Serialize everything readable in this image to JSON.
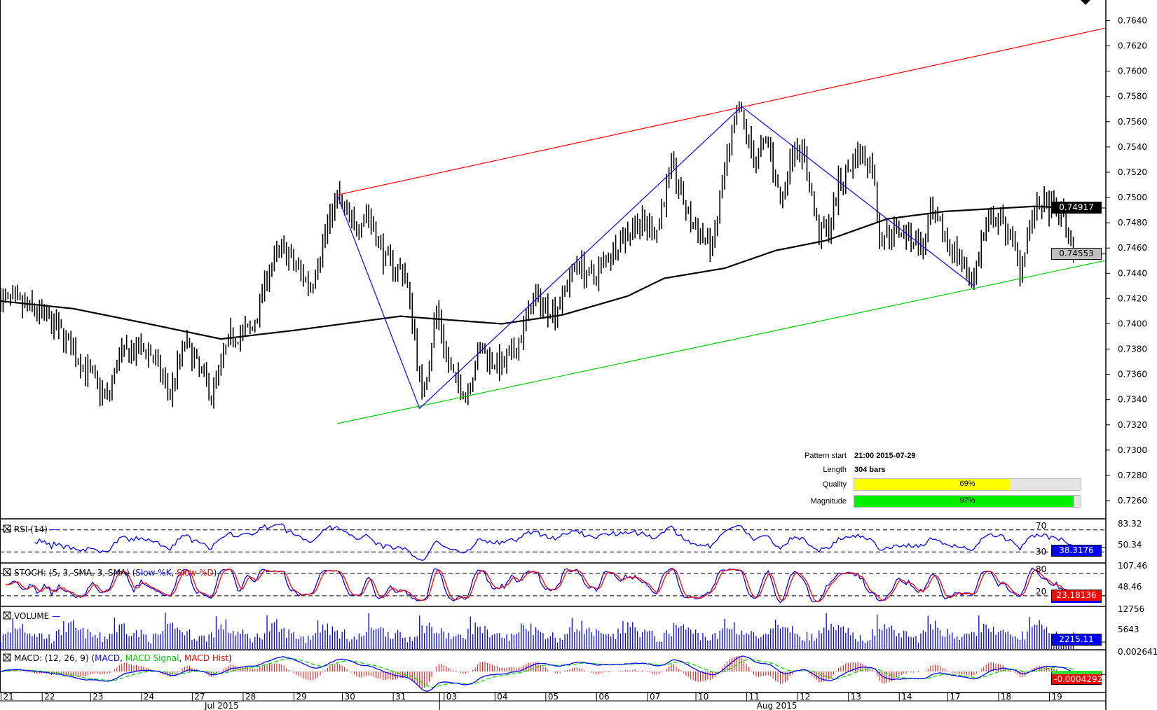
{
  "pattern_info": {
    "pattern_start_label": "Pattern start",
    "pattern_start_value": "21:00 2015-07-29",
    "length_label": "Length",
    "length_value": "304 bars",
    "quality_label": "Quality",
    "quality_value": "69%",
    "quality_fraction": 0.69,
    "magnitude_label": "Magnitude",
    "magnitude_value": "97%",
    "magnitude_fraction": 0.97
  },
  "colors": {
    "resistance": "#ff0000",
    "support": "#00cc00",
    "zigzag": "#0000ff",
    "quality": "#ffff00",
    "magnitude": "#00ee00",
    "sma": "#000000"
  },
  "chart_data": {
    "type": "ohlc",
    "title": "",
    "ylabel": "",
    "ylim": [
      0.725,
      0.765
    ],
    "y_ticks": [
      "0.7640",
      "0.7620",
      "0.7600",
      "0.7580",
      "0.7560",
      "0.7540",
      "0.7520",
      "0.7500",
      "0.7480",
      "0.7460",
      "0.7440",
      "0.7420",
      "0.7400",
      "0.7380",
      "0.7360",
      "0.7340",
      "0.7320",
      "0.7300",
      "0.7280",
      "0.7260"
    ],
    "bar_count": 444,
    "price_path": [
      [
        0,
        0.742
      ],
      [
        15,
        0.741
      ],
      [
        24,
        0.7395
      ],
      [
        44,
        0.734
      ],
      [
        49,
        0.7375
      ],
      [
        61,
        0.738
      ],
      [
        70,
        0.7345
      ],
      [
        76,
        0.7385
      ],
      [
        87,
        0.7345
      ],
      [
        95,
        0.739
      ],
      [
        104,
        0.7395
      ],
      [
        110,
        0.744
      ],
      [
        116,
        0.746
      ],
      [
        128,
        0.743
      ],
      [
        136,
        0.7485
      ],
      [
        139,
        0.75
      ],
      [
        146,
        0.7475
      ],
      [
        151,
        0.749
      ],
      [
        159,
        0.745
      ],
      [
        167,
        0.744
      ],
      [
        171,
        0.739
      ],
      [
        174,
        0.734
      ],
      [
        180,
        0.741
      ],
      [
        186,
        0.736
      ],
      [
        192,
        0.7345
      ],
      [
        198,
        0.738
      ],
      [
        207,
        0.7365
      ],
      [
        213,
        0.738
      ],
      [
        220,
        0.742
      ],
      [
        229,
        0.741
      ],
      [
        238,
        0.745
      ],
      [
        244,
        0.7435
      ],
      [
        253,
        0.746
      ],
      [
        262,
        0.748
      ],
      [
        271,
        0.7475
      ],
      [
        277,
        0.7525
      ],
      [
        285,
        0.748
      ],
      [
        294,
        0.746
      ],
      [
        299,
        0.752
      ],
      [
        305,
        0.757
      ],
      [
        311,
        0.753
      ],
      [
        317,
        0.7545
      ],
      [
        322,
        0.7495
      ],
      [
        328,
        0.7545
      ],
      [
        332,
        0.753
      ],
      [
        338,
        0.747
      ],
      [
        343,
        0.748
      ],
      [
        346,
        0.751
      ],
      [
        354,
        0.7535
      ],
      [
        360,
        0.7525
      ],
      [
        363,
        0.747
      ],
      [
        372,
        0.7475
      ],
      [
        381,
        0.746
      ],
      [
        384,
        0.7485
      ],
      [
        393,
        0.746
      ],
      [
        402,
        0.7435
      ],
      [
        405,
        0.7465
      ],
      [
        410,
        0.7485
      ],
      [
        416,
        0.7475
      ],
      [
        421,
        0.7445
      ],
      [
        425,
        0.748
      ],
      [
        430,
        0.7495
      ],
      [
        439,
        0.7485
      ],
      [
        443,
        0.7455
      ]
    ],
    "moving_average": [
      [
        0,
        0.7418
      ],
      [
        30,
        0.7412
      ],
      [
        61,
        0.74
      ],
      [
        91,
        0.7388
      ],
      [
        122,
        0.7395
      ],
      [
        165,
        0.7406
      ],
      [
        207,
        0.74
      ],
      [
        232,
        0.7407
      ],
      [
        259,
        0.7422
      ],
      [
        274,
        0.7436
      ],
      [
        299,
        0.7444
      ],
      [
        320,
        0.7458
      ],
      [
        341,
        0.7466
      ],
      [
        366,
        0.7483
      ],
      [
        390,
        0.7489
      ],
      [
        427,
        0.7493
      ],
      [
        443,
        0.74917
      ]
    ],
    "resistance_line": [
      [
        139,
        0.7502
      ],
      [
        456,
        0.7634
      ]
    ],
    "support_line": [
      [
        139,
        0.7321
      ],
      [
        456,
        0.745
      ]
    ],
    "zigzag": [
      [
        139,
        0.7502
      ],
      [
        173,
        0.7333
      ],
      [
        306,
        0.7572
      ],
      [
        402,
        0.743
      ]
    ],
    "last_values": {
      "moving_average": "0.74917",
      "close": "0.74553"
    },
    "x_labels": [
      [
        1,
        "21"
      ],
      [
        18,
        "22"
      ],
      [
        38,
        "23"
      ],
      [
        59,
        "24"
      ],
      [
        80,
        "27"
      ],
      [
        101,
        "28"
      ],
      [
        122,
        "29"
      ],
      [
        142,
        "30"
      ],
      [
        163,
        "31"
      ],
      [
        184,
        "03"
      ],
      [
        205,
        "04"
      ],
      [
        226,
        "05"
      ],
      [
        247,
        "06"
      ],
      [
        268,
        "07"
      ],
      [
        288,
        "10"
      ],
      [
        309,
        "11"
      ],
      [
        330,
        "12"
      ],
      [
        351,
        "13"
      ],
      [
        372,
        "14"
      ],
      [
        392,
        "17"
      ],
      [
        413,
        "18"
      ],
      [
        434,
        "19"
      ]
    ],
    "month_labels": [
      [
        90,
        "Jul 2015"
      ],
      [
        318,
        "Aug 2015"
      ]
    ],
    "month_divider_bar": 181,
    "indicators": {
      "rsi": {
        "label": "RSI (14)",
        "levels": [
          "70",
          "30"
        ],
        "scale_labels": [
          "83.32",
          "50.34"
        ],
        "last": "38.3176"
      },
      "stoch": {
        "label_prefix": "STOCH: (5, 3, SMA, 3, SMA) (",
        "k_label": "Slow %K",
        "sep": ", ",
        "d_label": "Slow %D",
        "suffix": ")",
        "levels": [
          "80",
          "20"
        ],
        "scale_labels": [
          "107.46",
          "48.46"
        ],
        "last": "23.18136"
      },
      "volume": {
        "label": "VOLUME",
        "scale_labels": [
          "12756",
          "5643"
        ],
        "last": "2215.11"
      },
      "macd": {
        "label_prefix": "MACD: (12, 26, 9) (",
        "macd_label": "MACD",
        "sep1": ", ",
        "signal_label": "MACD Signal",
        "sep2": ", ",
        "hist_label": "MACD Hist",
        "suffix": ")",
        "scale_labels": [
          "0.0026419"
        ],
        "last": "-0.0004292"
      }
    }
  }
}
